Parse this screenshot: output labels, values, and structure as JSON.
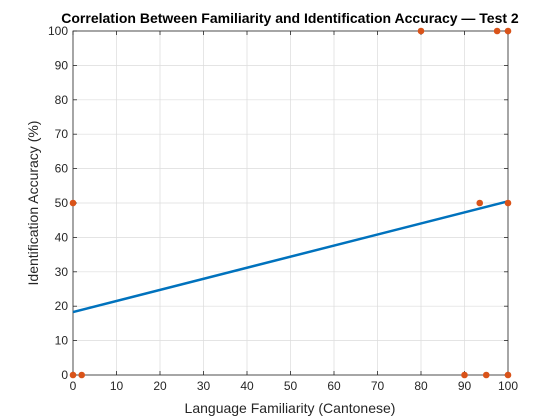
{
  "chart_data": {
    "type": "scatter",
    "title": "Correlation Between Familiarity and Identification Accuracy — Test 2",
    "xlabel": "Language Familiarity (Cantonese)",
    "ylabel": "Identification Accuracy (%)",
    "xlim": [
      0,
      100
    ],
    "ylim": [
      0,
      100
    ],
    "xticks": [
      "0",
      "10",
      "20",
      "30",
      "40",
      "50",
      "60",
      "70",
      "80",
      "90",
      "100"
    ],
    "yticks": [
      "0",
      "10",
      "20",
      "30",
      "40",
      "50",
      "60",
      "70",
      "80",
      "90",
      "100"
    ],
    "grid": true,
    "series": [
      {
        "points": [
          {
            "x": 0,
            "y": 0
          },
          {
            "x": 2,
            "y": 0
          },
          {
            "x": 0,
            "y": 50
          },
          {
            "x": 80,
            "y": 100
          },
          {
            "x": 90,
            "y": 0
          },
          {
            "x": 93.5,
            "y": 50
          },
          {
            "x": 95,
            "y": 0
          },
          {
            "x": 97.5,
            "y": 100
          },
          {
            "x": 100,
            "y": 100
          },
          {
            "x": 100,
            "y": 50
          },
          {
            "x": 100,
            "y": 0
          }
        ]
      }
    ],
    "fit_line": {
      "x": [
        0,
        100
      ],
      "y": [
        18.3,
        50.5
      ]
    },
    "colors": {
      "points": "#d95319",
      "fit_line": "#0072bd",
      "grid": "#dcdcdc",
      "axis": "#262626"
    }
  }
}
